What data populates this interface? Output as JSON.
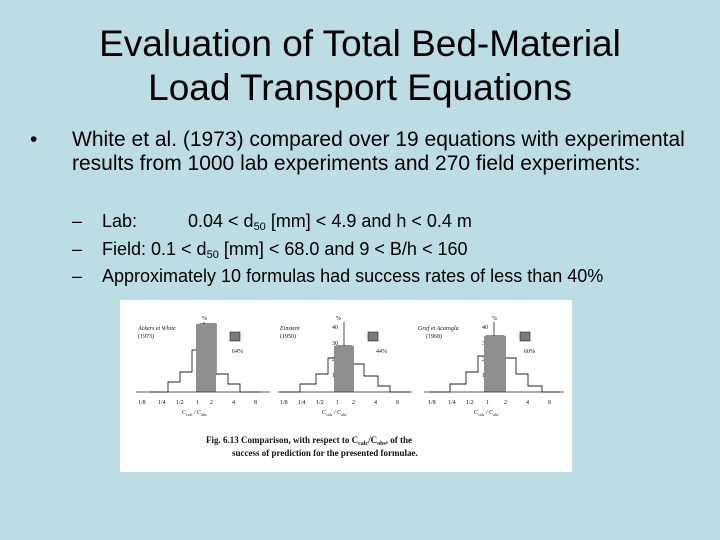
{
  "slide": {
    "title_line1": "Evaluation of Total Bed-Material",
    "title_line2": "Load Transport Equations",
    "bullet_symbol": "•",
    "bullet_text": "White et al. (1973) compared over 19 equations with experimental results from 1000 lab experiments and 270 field experiments:",
    "dash": "–",
    "sub1": {
      "label": "Lab:",
      "text_a": "0.04 < d",
      "sub": "50",
      "text_b": " [mm] < 4.9 and h < 0.4 m"
    },
    "sub2": {
      "label": "Field: 0.1 < d",
      "sub": "50",
      "text_b": " [mm] < 68.0 and 9 < B/h < 160"
    },
    "sub3": {
      "text": "Approximately 10 formulas had success rates of less than 40%"
    }
  },
  "figure": {
    "panels": [
      {
        "name_line1": "Ackers et White",
        "name_line2": "(1973)",
        "percent": "64%"
      },
      {
        "name_line1": "Einstein",
        "name_line2": "(1950)",
        "percent": "44%"
      },
      {
        "name_line1": "Graf et Acaroglu",
        "name_line2": "(1968)",
        "percent": "60%"
      }
    ],
    "y_unit": "%",
    "y_ticks": [
      "40",
      "30",
      "20",
      "10"
    ],
    "x_ticks": [
      "1/8",
      "1/4",
      "1/2",
      "1",
      "2",
      "4",
      "8"
    ],
    "x_label": "C",
    "x_label_sub1": "calc",
    "x_label_mid": " / C",
    "x_label_sub2": "obs",
    "caption_line1": "Fig. 6.13 Comparison, with respect to C",
    "caption_sub1": "calc",
    "caption_mid": "/C",
    "caption_sub2": "obs",
    "caption_end": ", of the",
    "caption_line2": "success of prediction for the presented formulae."
  }
}
